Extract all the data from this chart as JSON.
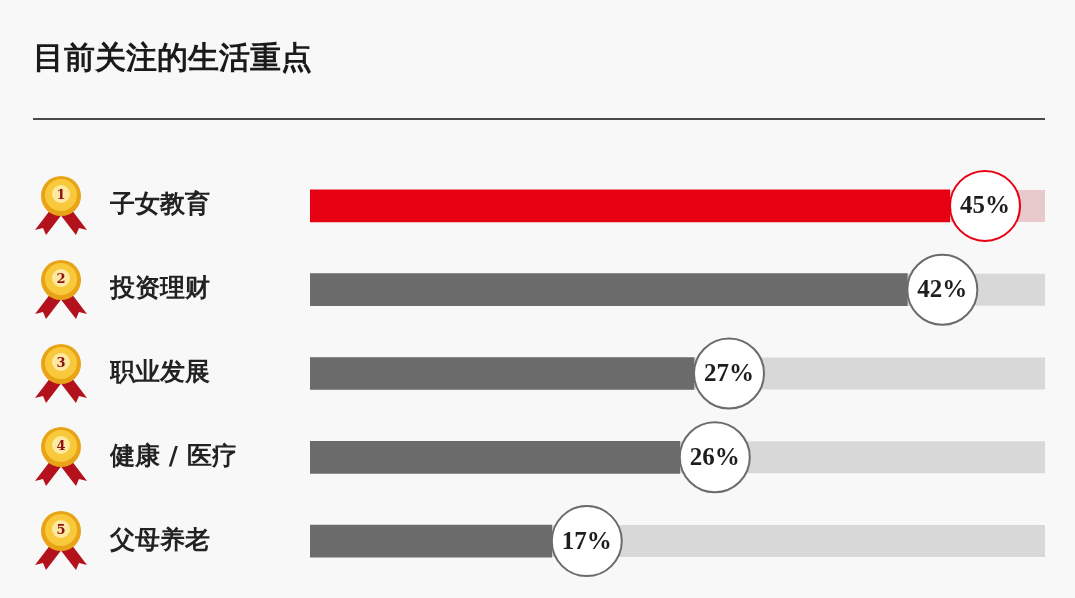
{
  "chart_data": {
    "type": "bar",
    "orientation": "horizontal",
    "title": "目前关注的生活重点",
    "categories": [
      "子女教育",
      "投资理财",
      "职业发展",
      "健康 / 医疗",
      "父母养老"
    ],
    "values": [
      45,
      42,
      27,
      26,
      17
    ],
    "colors": [
      "#e60012",
      "#6b6b6b",
      "#6b6b6b",
      "#6b6b6b",
      "#6b6b6b"
    ],
    "value_labels": [
      "45%",
      "42%",
      "27%",
      "26%",
      "17%"
    ],
    "annotations": [
      "1",
      "2",
      "3",
      "4",
      "5"
    ]
  }
}
